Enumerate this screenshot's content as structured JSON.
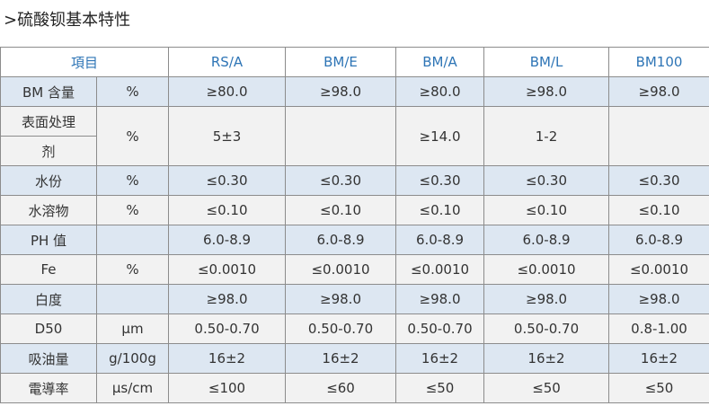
{
  "title": ">硫酸钡基本特性",
  "table": {
    "header": [
      "項目",
      "RS/A",
      "BM/E",
      "BM/A",
      "BM/L",
      "BM100"
    ],
    "rows": [
      {
        "label": "BM 含量",
        "unit": "%",
        "values": [
          "≥80.0",
          "≥98.0",
          "≥80.0",
          "≥98.0",
          "≥98.0"
        ]
      },
      {
        "label": [
          "表面处理",
          "剂"
        ],
        "unit": "%",
        "values": [
          "5±3",
          null,
          "≥14.0",
          "1-2",
          null
        ]
      },
      {
        "label": "水份",
        "unit": "%",
        "values": [
          "≤0.30",
          "≤0.30",
          "≤0.30",
          "≤0.30",
          "≤0.30"
        ]
      },
      {
        "label": "水溶物",
        "unit": "%",
        "values": [
          "≤0.10",
          "≤0.10",
          "≤0.10",
          "≤0.10",
          "≤0.10"
        ]
      },
      {
        "label": "PH 值",
        "unit": null,
        "values": [
          "6.0-8.9",
          "6.0-8.9",
          "6.0-8.9",
          "6.0-8.9",
          "6.0-8.9"
        ]
      },
      {
        "label": "Fe",
        "unit": "%",
        "values": [
          "≤0.0010",
          "≤0.0010",
          "≤0.0010",
          "≤0.0010",
          "≤0.0010"
        ]
      },
      {
        "label": "白度",
        "unit": null,
        "values": [
          "≥98.0",
          "≥98.0",
          "≥98.0",
          "≥98.0",
          "≥98.0"
        ]
      },
      {
        "label": "D50",
        "unit": "μm",
        "values": [
          "0.50-0.70",
          "0.50-0.70",
          "0.50-0.70",
          "0.50-0.70",
          "0.8-1.00"
        ]
      },
      {
        "label": "吸油量",
        "unit": "g/100g",
        "values": [
          "16±2",
          "16±2",
          "16±2",
          "16±2",
          "16±2"
        ]
      },
      {
        "label": "電導率",
        "unit": "μs/cm",
        "values": [
          "≤100",
          "≤60",
          "≤50",
          "≤50",
          "≤50"
        ]
      }
    ]
  }
}
